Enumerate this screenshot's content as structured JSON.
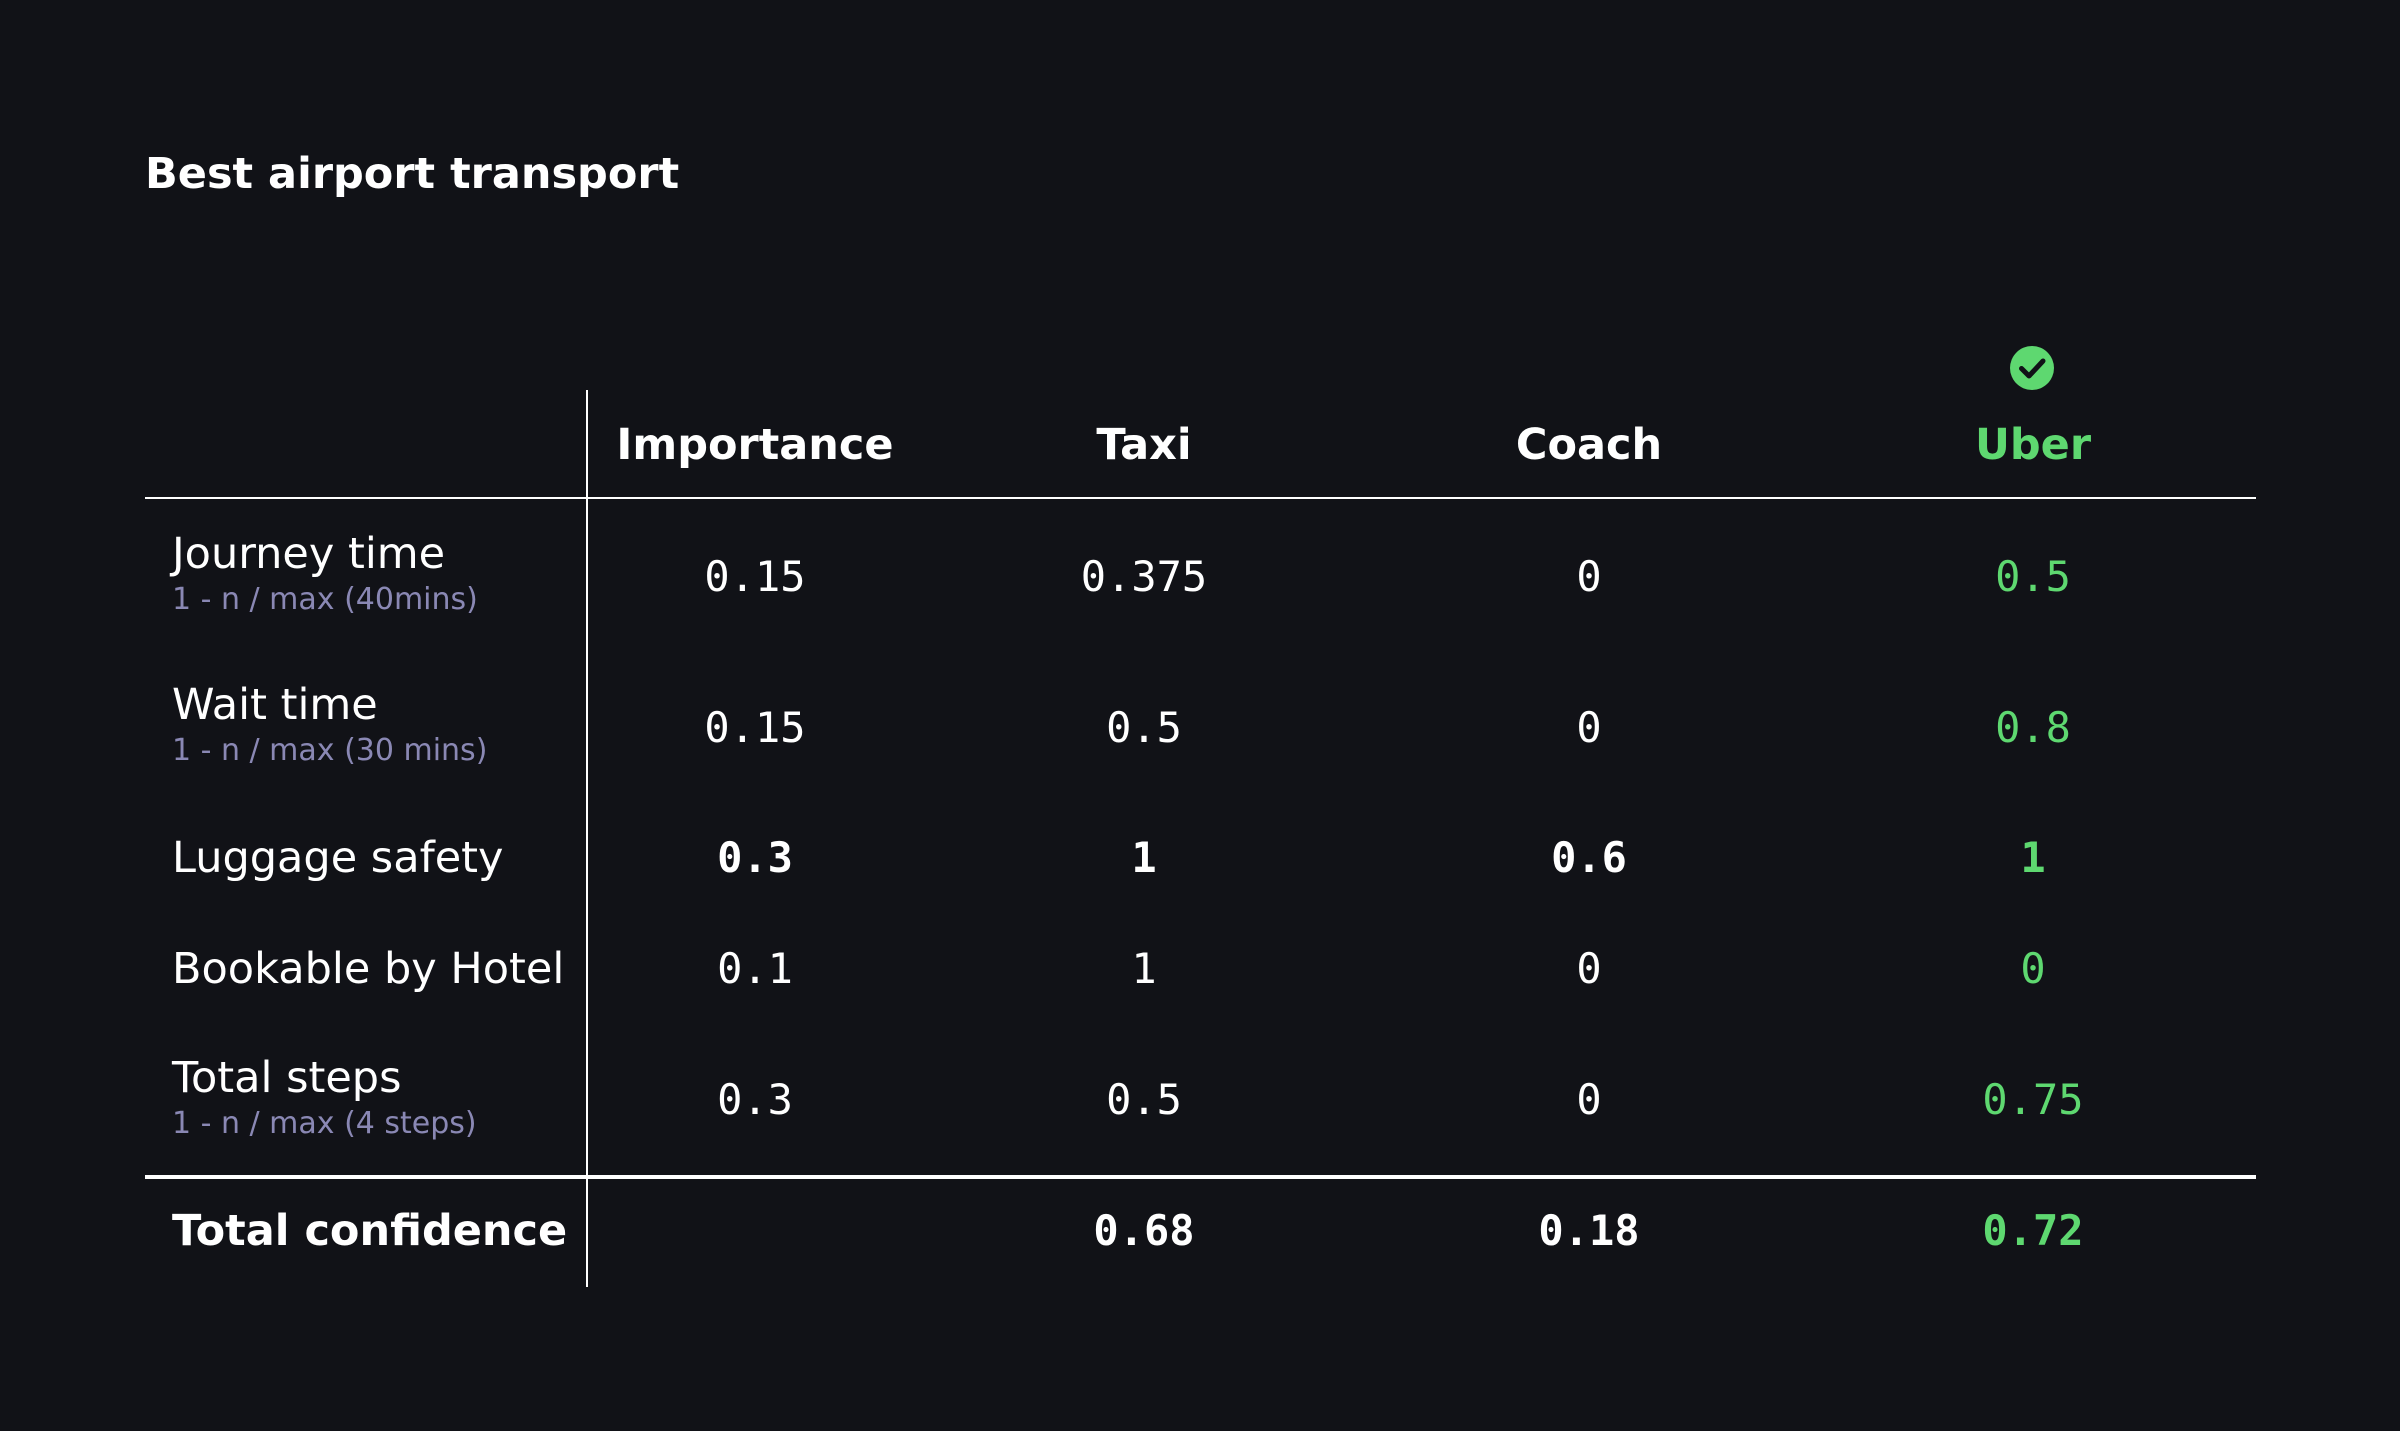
{
  "title": "Best airport transport",
  "columns": {
    "importance": "Importance",
    "taxi": "Taxi",
    "coach": "Coach",
    "uber": "Uber"
  },
  "winner_icon": "check-circle-icon",
  "accent_color": "#5ed870",
  "rows": [
    {
      "label": "Journey time",
      "sub": "1 - n / max (40mins)",
      "importance": "0.15",
      "taxi": "0.375",
      "coach": "0",
      "uber": "0.5"
    },
    {
      "label": "Wait time",
      "sub": "1 - n / max (30 mins)",
      "importance": "0.15",
      "taxi": "0.5",
      "coach": "0",
      "uber": "0.8"
    },
    {
      "label": "Luggage safety",
      "importance": "0.3",
      "taxi": "1",
      "coach": "0.6",
      "uber": "1"
    },
    {
      "label": "Bookable by Hotel",
      "importance": "0.1",
      "taxi": "1",
      "coach": "0",
      "uber": "0"
    },
    {
      "label": "Total steps",
      "sub": "1 - n / max (4 steps)",
      "importance": "0.3",
      "taxi": "0.5",
      "coach": "0",
      "uber": "0.75"
    }
  ],
  "total": {
    "label": "Total confidence",
    "taxi": "0.68",
    "coach": "0.18",
    "uber": "0.72"
  }
}
